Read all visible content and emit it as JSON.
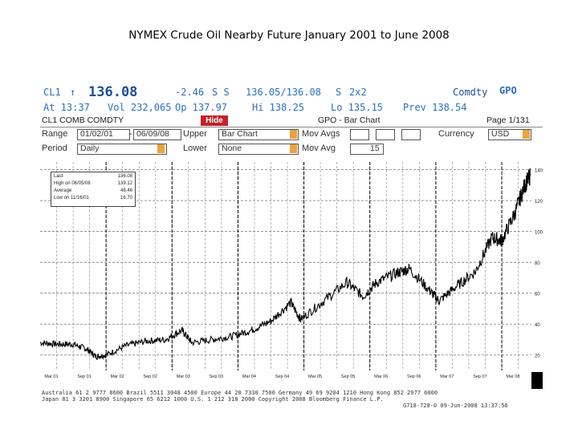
{
  "slide_title": "NYMEX Crude Oil Nearby Future January 2001 to June 2008",
  "terminal": {
    "ticker": "CL1",
    "last_price": "136.08",
    "change": "-2.46",
    "flags": "S S",
    "bid_ask": "136.05/136.08",
    "bid_ask_flag": "S",
    "size": "2x2",
    "function_title": "Comdty",
    "function_code": "GPO",
    "time_line": "At 13:37",
    "volume": "Vol 232,065",
    "open": "Op 137.97",
    "high": "Hi 138.25",
    "low": "Lo 135.15",
    "prev": "Prev 138.54",
    "security": "CL1 COMB COMDTY",
    "hide_label": "Hide",
    "chart_title": "GPO - Bar Chart",
    "page": "Page 1/131",
    "range_label": "Range",
    "range_start": "01/02/01",
    "range_end": "06/09/08",
    "upper_label": "Upper",
    "upper_value": "Bar Chart",
    "mov_avgs_label": "Mov Avgs",
    "currency_label": "Currency",
    "currency_value": "USD",
    "period_label": "Period",
    "period_value": "Daily",
    "lower_label": "Lower",
    "lower_value": "None",
    "mov_avg_label": "Mov Avg",
    "mov_avg_value": "15",
    "footer": [
      "Australia 61 2 9777 8600 Brazil 5511 3048 4500 Europe 44 20 7330 7500 Germany 49 69 9204 1210 Hong Kong 852 2977 6000",
      "Japan 81 3 3201 8900          Singapore 65 6212 1000       U.S. 1 212 318 2000        Copyright 2008 Bloomberg Finance L.P.",
      "G718-728-0 09-Jun-2008 13:37:56"
    ]
  },
  "legend": {
    "rows": [
      {
        "label": "Last",
        "value": "136.08"
      },
      {
        "label": "High on 06/05/08",
        "value": "139.12"
      },
      {
        "label": "Average",
        "value": "48.46"
      },
      {
        "label": "Low on 11/16/01",
        "value": "16.70"
      }
    ]
  },
  "chart_data": {
    "type": "line",
    "title": "NYMEX Crude Oil Nearby Future January 2001 to June 2008",
    "xlabel": "",
    "ylabel": "",
    "x_range": [
      2001.0,
      2008.45
    ],
    "ylim": [
      10,
      145
    ],
    "y_ticks": [
      20,
      40,
      60,
      80,
      100,
      120,
      140
    ],
    "grid": true,
    "legend": "top-left",
    "series": [
      {
        "x": [
          2001.0,
          2001.25,
          2001.5,
          2001.7,
          2001.85,
          2002.0,
          2002.3,
          2002.6,
          2002.9,
          2003.15,
          2003.3,
          2003.6,
          2003.9,
          2004.2,
          2004.5,
          2004.8,
          2004.95,
          2005.3,
          2005.65,
          2005.9,
          2006.1,
          2006.4,
          2006.6,
          2006.9,
          2007.05,
          2007.3,
          2007.6,
          2007.85,
          2008.0,
          2008.2,
          2008.35,
          2008.43
        ],
        "y": [
          28,
          27,
          27,
          24,
          19,
          20,
          26,
          29,
          30,
          36,
          28,
          30,
          32,
          36,
          42,
          54,
          43,
          55,
          67,
          58,
          67,
          73,
          76,
          62,
          55,
          64,
          74,
          96,
          94,
          112,
          130,
          136
        ]
      }
    ],
    "x_tick_labels": [
      "Mar 01",
      "Sep 01",
      "Mar 02",
      "Sep 02",
      "Mar 03",
      "Sep 03",
      "Mar 04",
      "Sep 04",
      "Mar 05",
      "Sep 05",
      "Mar 06",
      "Sep 06",
      "Mar 07",
      "Sep 07",
      "Mar 08"
    ],
    "accent_color": "#000000"
  }
}
